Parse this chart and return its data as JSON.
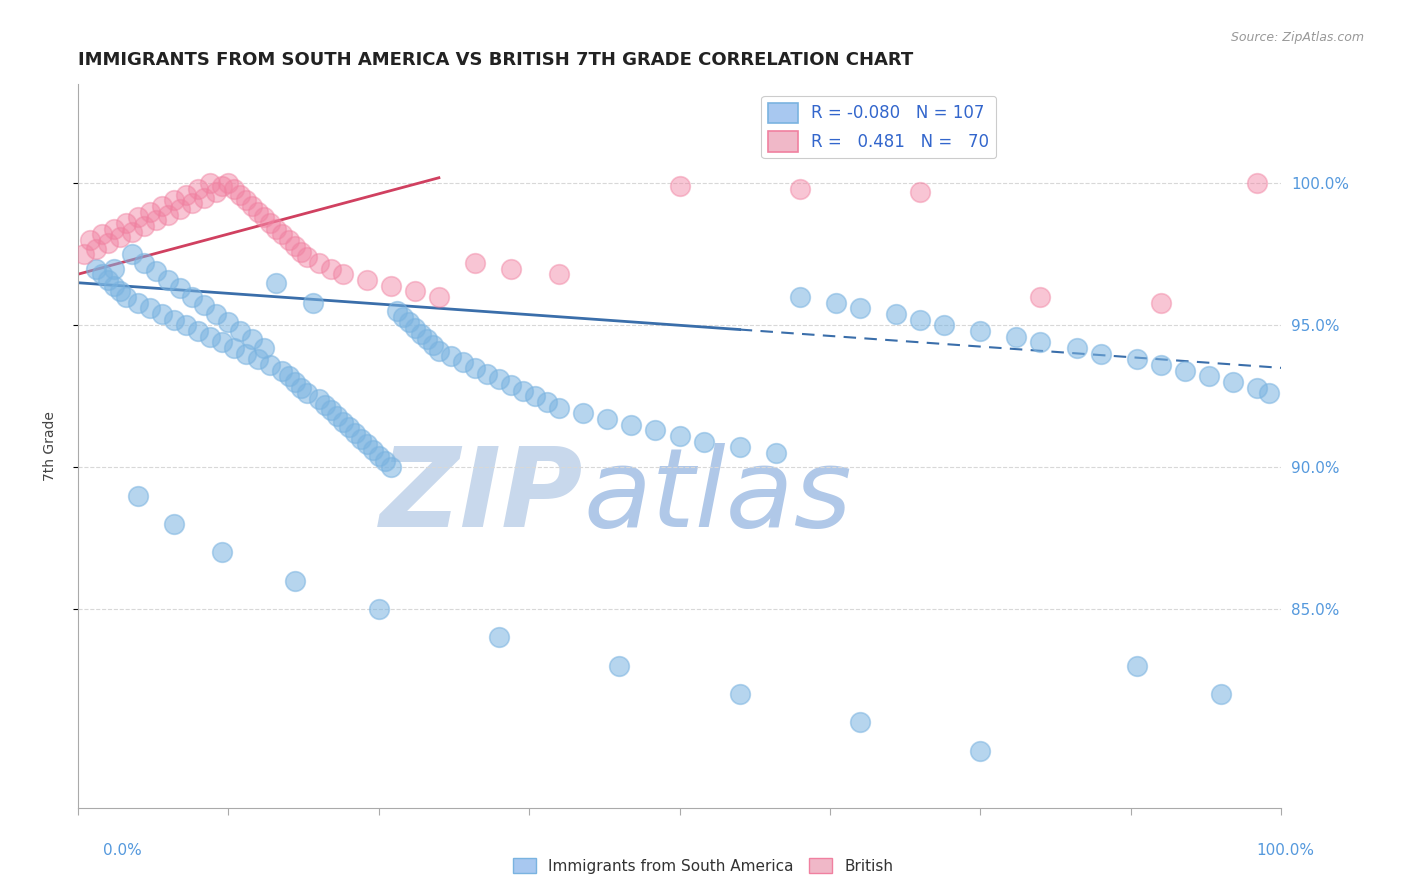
{
  "title": "IMMIGRANTS FROM SOUTH AMERICA VS BRITISH 7TH GRADE CORRELATION CHART",
  "source_text": "Source: ZipAtlas.com",
  "ylabel": "7th Grade",
  "right_yticks": [
    "100.0%",
    "95.0%",
    "90.0%",
    "85.0%"
  ],
  "right_ytick_vals": [
    1.0,
    0.95,
    0.9,
    0.85
  ],
  "blue_color": "#7ab3e0",
  "pink_color": "#f080a0",
  "blue_trend_color": "#3a6eaa",
  "pink_trend_color": "#d04060",
  "watermark_text": "ZIPatlas",
  "watermark_color": "#d0dff0",
  "blue_dots_x": [
    1.5,
    2.0,
    2.5,
    3.0,
    3.5,
    4.0,
    4.5,
    5.0,
    5.5,
    6.0,
    6.5,
    7.0,
    7.5,
    8.0,
    8.5,
    9.0,
    9.5,
    10.0,
    10.5,
    11.0,
    11.5,
    12.0,
    12.5,
    13.0,
    13.5,
    14.0,
    14.5,
    15.0,
    15.5,
    16.0,
    16.5,
    17.0,
    17.5,
    18.0,
    18.5,
    19.0,
    19.5,
    20.0,
    20.5,
    21.0,
    21.5,
    22.0,
    22.5,
    23.0,
    23.5,
    24.0,
    24.5,
    25.0,
    25.5,
    26.0,
    26.5,
    27.0,
    27.5,
    28.0,
    28.5,
    29.0,
    29.5,
    30.0,
    31.0,
    32.0,
    33.0,
    34.0,
    35.0,
    36.0,
    37.0,
    38.0,
    39.0,
    40.0,
    42.0,
    44.0,
    46.0,
    48.0,
    50.0,
    52.0,
    55.0,
    58.0,
    60.0,
    63.0,
    65.0,
    68.0,
    70.0,
    72.0,
    75.0,
    78.0,
    80.0,
    83.0,
    85.0,
    88.0,
    90.0,
    92.0,
    94.0,
    96.0,
    98.0,
    99.0,
    3.0,
    5.0,
    8.0,
    12.0,
    18.0,
    25.0,
    35.0,
    45.0,
    55.0,
    65.0,
    75.0,
    88.0,
    95.0
  ],
  "blue_dots_y": [
    0.97,
    0.968,
    0.966,
    0.964,
    0.962,
    0.96,
    0.975,
    0.958,
    0.972,
    0.956,
    0.969,
    0.954,
    0.966,
    0.952,
    0.963,
    0.95,
    0.96,
    0.948,
    0.957,
    0.946,
    0.954,
    0.944,
    0.951,
    0.942,
    0.948,
    0.94,
    0.945,
    0.938,
    0.942,
    0.936,
    0.965,
    0.934,
    0.932,
    0.93,
    0.928,
    0.926,
    0.958,
    0.924,
    0.922,
    0.92,
    0.918,
    0.916,
    0.914,
    0.912,
    0.91,
    0.908,
    0.906,
    0.904,
    0.902,
    0.9,
    0.955,
    0.953,
    0.951,
    0.949,
    0.947,
    0.945,
    0.943,
    0.941,
    0.939,
    0.937,
    0.935,
    0.933,
    0.931,
    0.929,
    0.927,
    0.925,
    0.923,
    0.921,
    0.919,
    0.917,
    0.915,
    0.913,
    0.911,
    0.909,
    0.907,
    0.905,
    0.96,
    0.958,
    0.956,
    0.954,
    0.952,
    0.95,
    0.948,
    0.946,
    0.944,
    0.942,
    0.94,
    0.938,
    0.936,
    0.934,
    0.932,
    0.93,
    0.928,
    0.926,
    0.97,
    0.89,
    0.88,
    0.87,
    0.86,
    0.85,
    0.84,
    0.83,
    0.82,
    0.81,
    0.8,
    0.83,
    0.82
  ],
  "pink_dots_x": [
    0.5,
    1.0,
    1.5,
    2.0,
    2.5,
    3.0,
    3.5,
    4.0,
    4.5,
    5.0,
    5.5,
    6.0,
    6.5,
    7.0,
    7.5,
    8.0,
    8.5,
    9.0,
    9.5,
    10.0,
    10.5,
    11.0,
    11.5,
    12.0,
    12.5,
    13.0,
    13.5,
    14.0,
    14.5,
    15.0,
    15.5,
    16.0,
    16.5,
    17.0,
    17.5,
    18.0,
    18.5,
    19.0,
    20.0,
    21.0,
    22.0,
    24.0,
    26.0,
    28.0,
    30.0,
    33.0,
    36.0,
    40.0,
    50.0,
    60.0,
    70.0,
    80.0,
    90.0,
    98.0
  ],
  "pink_dots_y": [
    0.975,
    0.98,
    0.977,
    0.982,
    0.979,
    0.984,
    0.981,
    0.986,
    0.983,
    0.988,
    0.985,
    0.99,
    0.987,
    0.992,
    0.989,
    0.994,
    0.991,
    0.996,
    0.993,
    0.998,
    0.995,
    1.0,
    0.997,
    0.999,
    1.0,
    0.998,
    0.996,
    0.994,
    0.992,
    0.99,
    0.988,
    0.986,
    0.984,
    0.982,
    0.98,
    0.978,
    0.976,
    0.974,
    0.972,
    0.97,
    0.968,
    0.966,
    0.964,
    0.962,
    0.96,
    0.972,
    0.97,
    0.968,
    0.999,
    0.998,
    0.997,
    0.96,
    0.958,
    1.0
  ],
  "blue_trend_x": [
    0.0,
    100.0
  ],
  "blue_trend_y": [
    0.965,
    0.935
  ],
  "blue_trend_solid_x1": 55.0,
  "pink_trend_x": [
    0.0,
    30.0
  ],
  "pink_trend_y": [
    0.968,
    1.002
  ],
  "xlim": [
    0.0,
    100.0
  ],
  "ylim": [
    0.78,
    1.035
  ],
  "grid_color": "#d8d8d8",
  "background_color": "#ffffff",
  "title_fontsize": 13,
  "axis_fontsize": 10
}
